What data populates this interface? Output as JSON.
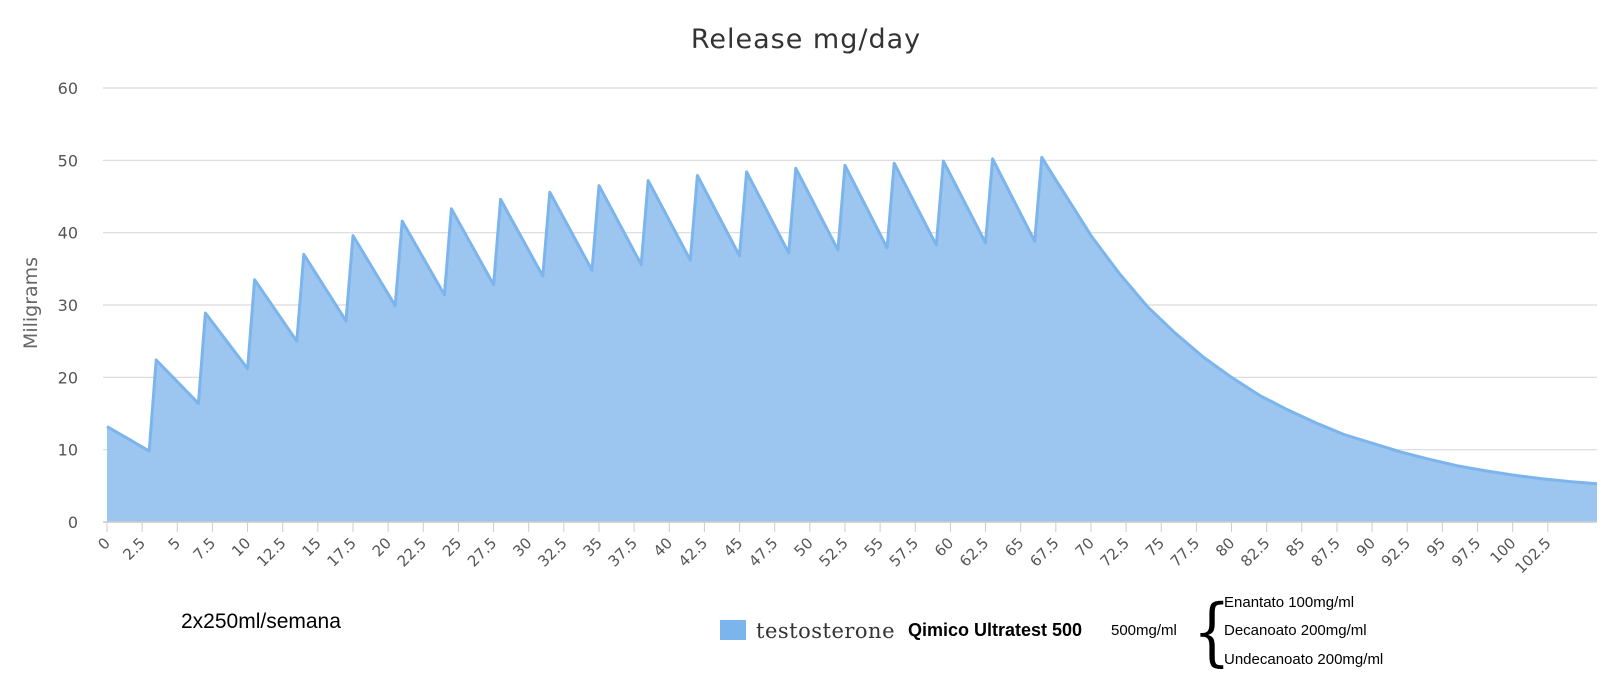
{
  "colors": {
    "area_fill": "#9cc5f0",
    "area_line": "#7cb5ec",
    "grid": "#d9d9d9",
    "text": "#333333"
  },
  "chart_data": {
    "type": "area",
    "title": "Release mg/day",
    "ylabel": "Miligrams",
    "xlabel": "",
    "ylim": [
      0,
      60
    ],
    "yticks": [
      "0",
      "10",
      "20",
      "30",
      "40",
      "50",
      "60"
    ],
    "xlim": [
      0,
      106
    ],
    "xticks": [
      "0",
      "2.5",
      "5",
      "7.5",
      "10",
      "12.5",
      "15",
      "17.5",
      "20",
      "22.5",
      "25",
      "27.5",
      "30",
      "32.5",
      "35",
      "37.5",
      "40",
      "42.5",
      "45",
      "47.5",
      "50",
      "52.5",
      "55",
      "57.5",
      "60",
      "62.5",
      "65",
      "67.5",
      "70",
      "72.5",
      "75",
      "77.5",
      "80",
      "82.5",
      "85",
      "87.5",
      "90",
      "92.5",
      "95",
      "97.5",
      "100",
      "102.5"
    ],
    "grid": true,
    "legend": "bottom",
    "series": [
      {
        "name": "testosterone",
        "points": [
          [
            0,
            13.2
          ],
          [
            3,
            9.8
          ],
          [
            3.5,
            22.4
          ],
          [
            6.5,
            16.4
          ],
          [
            7,
            28.9
          ],
          [
            10,
            21.2
          ],
          [
            10.5,
            33.5
          ],
          [
            13.5,
            25.0
          ],
          [
            14,
            37.0
          ],
          [
            17,
            27.8
          ],
          [
            17.5,
            39.6
          ],
          [
            20.5,
            29.9
          ],
          [
            21,
            41.6
          ],
          [
            24,
            31.4
          ],
          [
            24.5,
            43.3
          ],
          [
            27.5,
            32.8
          ],
          [
            28,
            44.6
          ],
          [
            31,
            34.0
          ],
          [
            31.5,
            45.6
          ],
          [
            34.5,
            34.8
          ],
          [
            35,
            46.5
          ],
          [
            38,
            35.6
          ],
          [
            38.5,
            47.2
          ],
          [
            41.5,
            36.2
          ],
          [
            42,
            47.9
          ],
          [
            45,
            36.8
          ],
          [
            45.5,
            48.4
          ],
          [
            48.5,
            37.2
          ],
          [
            49,
            48.9
          ],
          [
            52,
            37.6
          ],
          [
            52.5,
            49.3
          ],
          [
            55.5,
            37.9
          ],
          [
            56,
            49.6
          ],
          [
            59,
            38.3
          ],
          [
            59.5,
            49.9
          ],
          [
            62.5,
            38.6
          ],
          [
            63,
            50.2
          ],
          [
            66,
            38.8
          ],
          [
            66.5,
            50.4
          ],
          [
            67.5,
            47.3
          ],
          [
            69,
            42.7
          ],
          [
            70,
            39.6
          ],
          [
            72,
            34.4
          ],
          [
            74,
            29.8
          ],
          [
            76,
            26.1
          ],
          [
            78,
            22.8
          ],
          [
            80,
            20.0
          ],
          [
            82,
            17.5
          ],
          [
            84,
            15.5
          ],
          [
            86,
            13.7
          ],
          [
            88,
            12.1
          ],
          [
            90,
            10.9
          ],
          [
            92,
            9.7
          ],
          [
            94,
            8.7
          ],
          [
            96,
            7.8
          ],
          [
            98,
            7.1
          ],
          [
            100,
            6.5
          ],
          [
            102,
            6.0
          ],
          [
            104,
            5.6
          ],
          [
            106,
            5.3
          ]
        ]
      }
    ]
  },
  "notes": {
    "dose": "2x250ml/semana",
    "product_name": "Qimico Ultratest 500",
    "product_concentration": "500mg/ml",
    "brace": "{",
    "esters": [
      "Enantato 100mg/ml",
      "Decanoato 200mg/ml",
      "Undecanoato 200mg/ml"
    ]
  }
}
